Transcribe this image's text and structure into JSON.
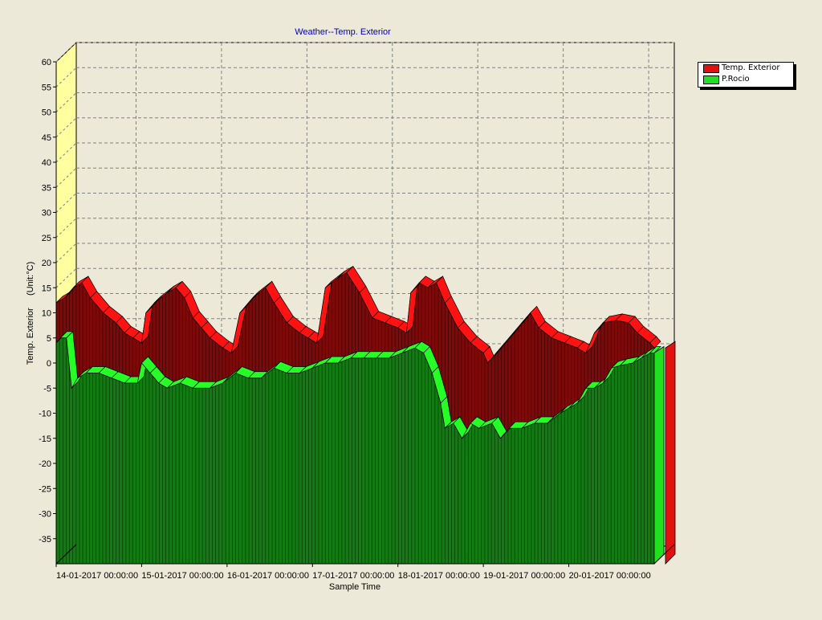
{
  "chart_data": {
    "type": "area",
    "title": "Weather--Temp. Exterior",
    "xlabel": "Sample Time",
    "ylabel": "Temp. Exterior     (Unit:°C)",
    "ylim": [
      -40,
      60
    ],
    "yticks": [
      60,
      55,
      50,
      45,
      40,
      35,
      30,
      25,
      20,
      15,
      10,
      5,
      0,
      -5,
      -10,
      -15,
      -20,
      -25,
      -30,
      -35
    ],
    "xlim": [
      0,
      7
    ],
    "xticks": [
      {
        "x": 0,
        "label": "14-01-2017 00:00:00"
      },
      {
        "x": 1,
        "label": "15-01-2017 00:00:00"
      },
      {
        "x": 2,
        "label": "16-01-2017 00:00:00"
      },
      {
        "x": 3,
        "label": "17-01-2017 00:00:00"
      },
      {
        "x": 4,
        "label": "18-01-2017 00:00:00"
      },
      {
        "x": 5,
        "label": "19-01-2017 00:00:00"
      },
      {
        "x": 6,
        "label": "20-01-2017 00:00:00"
      }
    ],
    "grid": true,
    "legend_position": "top-right",
    "series": [
      {
        "name": "Temp. Exterior",
        "color": "#e31010",
        "points": [
          [
            0,
            12
          ],
          [
            0.1,
            13
          ],
          [
            0.2,
            15
          ],
          [
            0.3,
            16
          ],
          [
            0.4,
            13
          ],
          [
            0.55,
            10
          ],
          [
            0.7,
            8
          ],
          [
            0.8,
            6
          ],
          [
            0.9,
            5
          ],
          [
            1.0,
            4
          ],
          [
            1.05,
            10
          ],
          [
            1.15,
            12
          ],
          [
            1.3,
            14
          ],
          [
            1.4,
            15
          ],
          [
            1.5,
            13
          ],
          [
            1.6,
            9
          ],
          [
            1.7,
            7
          ],
          [
            1.8,
            5
          ],
          [
            1.95,
            3
          ],
          [
            2.05,
            2
          ],
          [
            2.15,
            10
          ],
          [
            2.3,
            13
          ],
          [
            2.45,
            15
          ],
          [
            2.55,
            12
          ],
          [
            2.7,
            8
          ],
          [
            2.85,
            6
          ],
          [
            2.95,
            5
          ],
          [
            3.05,
            4
          ],
          [
            3.15,
            15
          ],
          [
            3.3,
            17
          ],
          [
            3.4,
            18
          ],
          [
            3.55,
            14
          ],
          [
            3.7,
            9
          ],
          [
            3.85,
            8
          ],
          [
            4.0,
            7
          ],
          [
            4.1,
            6
          ],
          [
            4.15,
            14
          ],
          [
            4.25,
            16
          ],
          [
            4.35,
            15
          ],
          [
            4.45,
            16
          ],
          [
            4.55,
            12
          ],
          [
            4.7,
            7
          ],
          [
            4.85,
            4
          ],
          [
            5.0,
            2
          ],
          [
            5.05,
            0
          ],
          [
            5.15,
            2
          ],
          [
            5.3,
            5
          ],
          [
            5.45,
            8
          ],
          [
            5.55,
            10
          ],
          [
            5.65,
            7
          ],
          [
            5.8,
            5
          ],
          [
            5.95,
            4
          ],
          [
            6.1,
            3
          ],
          [
            6.2,
            2
          ],
          [
            6.3,
            6
          ],
          [
            6.4,
            8
          ],
          [
            6.55,
            8.5
          ],
          [
            6.7,
            8
          ],
          [
            6.8,
            6
          ],
          [
            6.95,
            4
          ],
          [
            7.0,
            3
          ]
        ]
      },
      {
        "name": "P.Rocio",
        "color": "#20e020",
        "points": [
          [
            0,
            4
          ],
          [
            0.05,
            5
          ],
          [
            0.12,
            5
          ],
          [
            0.18,
            -5
          ],
          [
            0.25,
            -3
          ],
          [
            0.35,
            -2
          ],
          [
            0.5,
            -2
          ],
          [
            0.65,
            -3
          ],
          [
            0.8,
            -4
          ],
          [
            0.95,
            -4
          ],
          [
            1.0,
            0
          ],
          [
            1.1,
            -2
          ],
          [
            1.2,
            -4
          ],
          [
            1.3,
            -5
          ],
          [
            1.45,
            -4
          ],
          [
            1.6,
            -5
          ],
          [
            1.8,
            -5
          ],
          [
            1.95,
            -4
          ],
          [
            2.1,
            -2
          ],
          [
            2.25,
            -3
          ],
          [
            2.4,
            -3
          ],
          [
            2.55,
            -1
          ],
          [
            2.7,
            -2
          ],
          [
            2.85,
            -2
          ],
          [
            3.0,
            -1
          ],
          [
            3.15,
            0
          ],
          [
            3.3,
            0
          ],
          [
            3.45,
            1
          ],
          [
            3.6,
            1
          ],
          [
            3.75,
            1
          ],
          [
            3.9,
            1
          ],
          [
            4.05,
            2
          ],
          [
            4.2,
            3
          ],
          [
            4.3,
            2
          ],
          [
            4.4,
            -2
          ],
          [
            4.5,
            -8
          ],
          [
            4.55,
            -13
          ],
          [
            4.65,
            -12
          ],
          [
            4.75,
            -15
          ],
          [
            4.85,
            -12
          ],
          [
            4.95,
            -13
          ],
          [
            5.1,
            -12
          ],
          [
            5.2,
            -15
          ],
          [
            5.3,
            -13
          ],
          [
            5.45,
            -13
          ],
          [
            5.6,
            -12
          ],
          [
            5.75,
            -12
          ],
          [
            5.9,
            -10
          ],
          [
            6.0,
            -9
          ],
          [
            6.1,
            -8
          ],
          [
            6.2,
            -5
          ],
          [
            6.3,
            -5
          ],
          [
            6.4,
            -4
          ],
          [
            6.5,
            -1
          ],
          [
            6.6,
            -0.5
          ],
          [
            6.75,
            0
          ],
          [
            6.85,
            1
          ],
          [
            6.95,
            2
          ],
          [
            7.0,
            2
          ]
        ]
      }
    ]
  }
}
